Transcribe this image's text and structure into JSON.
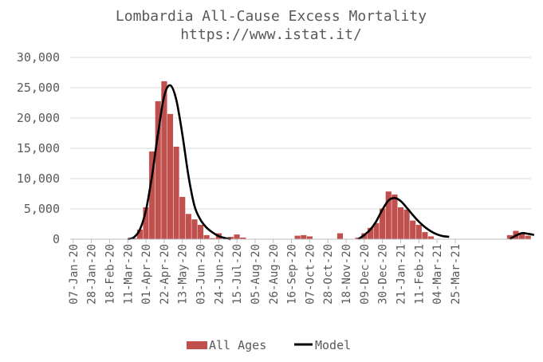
{
  "chart_data": {
    "type": "bar",
    "title": "Lombardia All-Cause Excess Mortality",
    "subtitle": "https://www.istat.it/",
    "xlabel": "",
    "ylabel": "",
    "ylim": [
      0,
      30000
    ],
    "yticks": [
      0,
      5000,
      10000,
      15000,
      20000,
      25000,
      30000
    ],
    "ytick_labels": [
      "0",
      "5,000",
      "10,000",
      "15,000",
      "20,000",
      "25,000",
      "30,000"
    ],
    "grid": true,
    "legend_position": "bottom",
    "x_tick_labels": [
      "07-Jan-20",
      "28-Jan-20",
      "18-Feb-20",
      "11-Mar-20",
      "01-Apr-20",
      "22-Apr-20",
      "13-May-20",
      "03-Jun-20",
      "24-Jun-20",
      "15-Jul-20",
      "05-Aug-20",
      "26-Aug-20",
      "16-Sep-20",
      "07-Oct-20",
      "28-Oct-20",
      "18-Nov-20",
      "09-Dec-20",
      "30-Dec-20",
      "21-Jan-21",
      "11-Feb-21",
      "04-Mar-21",
      "25-Mar-21"
    ],
    "series": [
      {
        "name": "All Ages",
        "type": "bar",
        "color": "#c0504d",
        "values": [
          100,
          100,
          0,
          50,
          50,
          50,
          0,
          0,
          0,
          0,
          200,
          1600,
          5300,
          14500,
          22800,
          26100,
          20700,
          15300,
          7000,
          4200,
          3300,
          2400,
          700,
          200,
          1000,
          0,
          400,
          800,
          300,
          0,
          0,
          0,
          0,
          0,
          0,
          0,
          0,
          600,
          700,
          500,
          0,
          0,
          0,
          0,
          1000,
          0,
          0,
          300,
          1000,
          1900,
          2700,
          5100,
          7900,
          7400,
          5300,
          4900,
          3100,
          2400,
          1200,
          500,
          0,
          0,
          0,
          0,
          0,
          0,
          0,
          0,
          0,
          0,
          0,
          0,
          700,
          1400,
          1100,
          600
        ]
      },
      {
        "name": "Model",
        "type": "line",
        "color": "#000000",
        "segments": [
          {
            "start_week": 9,
            "values": [
              0,
              300,
              1600,
              4800,
              10500,
              17500,
              23600,
              25400,
              23000,
              17300,
              10500,
              5500,
              3200,
              1900,
              1100,
              500,
              200,
              0
            ]
          },
          {
            "start_week": 47,
            "values": [
              0,
              700,
              1600,
              3000,
              4900,
              6400,
              6800,
              6300,
              5200,
              4000,
              2900,
              2000,
              1300,
              800,
              500,
              400
            ]
          },
          {
            "start_week": 72,
            "values": [
              0,
              600,
              1000,
              900,
              700
            ]
          }
        ]
      }
    ]
  }
}
